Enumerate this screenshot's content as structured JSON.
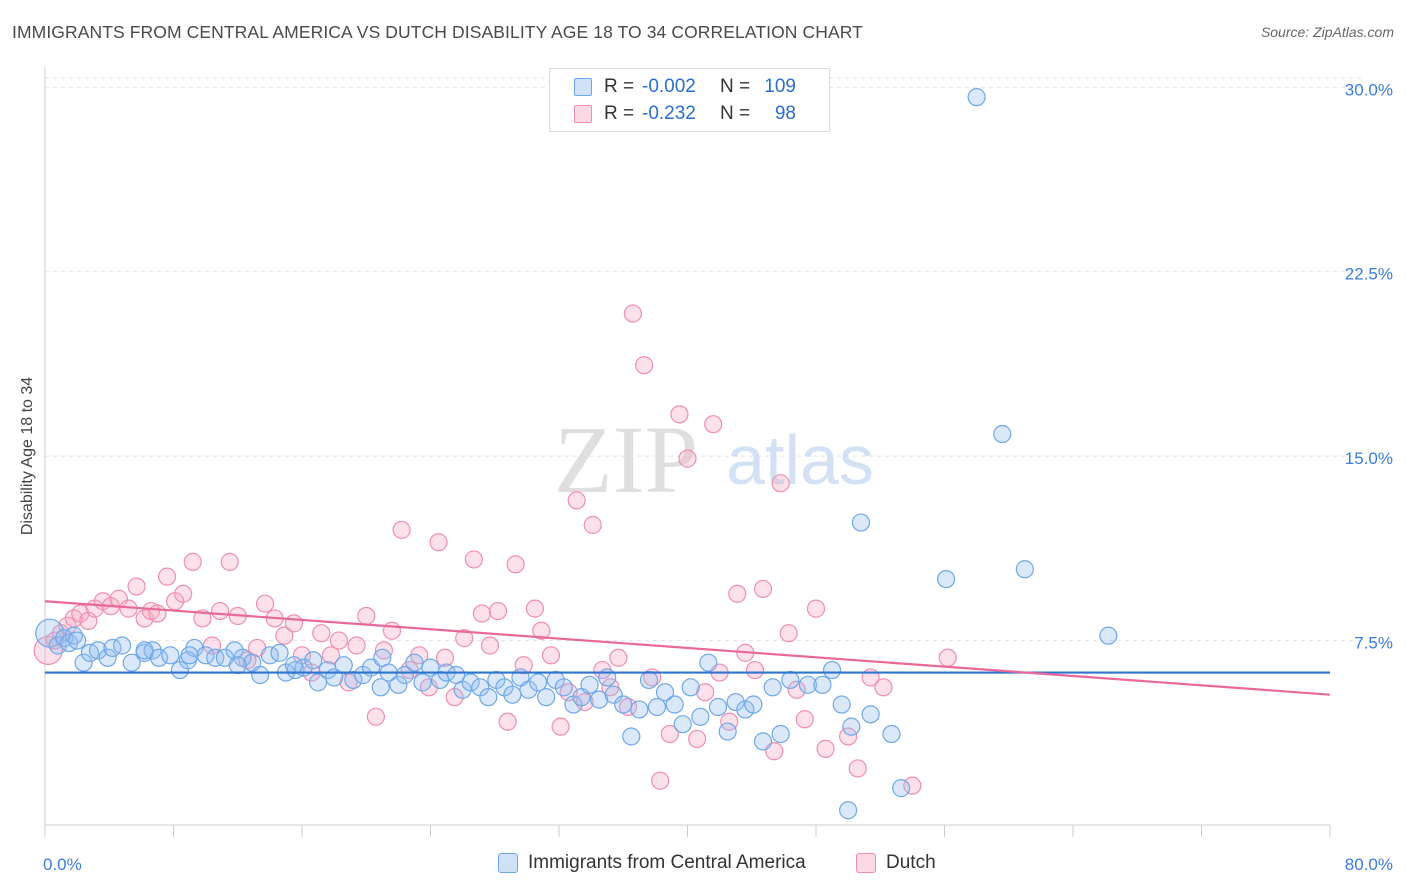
{
  "header": {
    "title": "IMMIGRANTS FROM CENTRAL AMERICA VS DUTCH DISABILITY AGE 18 TO 34 CORRELATION CHART",
    "source": "Source: ZipAtlas.com"
  },
  "watermark": {
    "zip": "ZIP",
    "atlas": "atlas"
  },
  "legend": {
    "r_label": "R =",
    "n_label": "N =",
    "rows": [
      {
        "r": "-0.002",
        "n": "109",
        "color": "#6fa8e8"
      },
      {
        "r": "-0.232",
        "n": "98",
        "color": "#f08aa8"
      }
    ]
  },
  "bottom_legend": {
    "items": [
      {
        "label": "Immigrants from Central America",
        "color": "#6fa8e8"
      },
      {
        "label": "Dutch",
        "color": "#f08aa8"
      }
    ]
  },
  "colors": {
    "blue_fill": "rgba(150,190,240,0.35)",
    "blue_stroke": "#6fa8e8",
    "blue_line": "#2f74cf",
    "pink_fill": "rgba(245,170,195,0.35)",
    "pink_stroke": "#ef8fae",
    "pink_line": "#e8689a",
    "axis_text": "#3b7dd8"
  },
  "chart_data": {
    "type": "scatter",
    "title": "IMMIGRANTS FROM CENTRAL AMERICA VS DUTCH DISABILITY AGE 18 TO 34 CORRELATION CHART",
    "xlabel": "",
    "ylabel": "Disability Age 18 to 34",
    "xlim": [
      0,
      80
    ],
    "ylim": [
      0,
      30.5
    ],
    "x_tick_labels": [
      "0.0%",
      "80.0%"
    ],
    "y_ticks": [
      7.5,
      15.0,
      22.5,
      30.0
    ],
    "y_tick_labels": [
      "7.5%",
      "15.0%",
      "22.5%",
      "30.0%"
    ],
    "grid": "horizontal dashed",
    "legend_position": "top-center",
    "series": [
      {
        "name": "Immigrants from Central America",
        "r": -0.002,
        "n": 109,
        "trend": {
          "x": [
            0,
            80
          ],
          "y": [
            6.2,
            6.2
          ]
        },
        "points": [
          [
            0.3,
            7.8
          ],
          [
            0.8,
            7.3
          ],
          [
            1.2,
            7.6
          ],
          [
            1.5,
            7.4
          ],
          [
            1.8,
            7.7
          ],
          [
            2.0,
            7.5
          ],
          [
            2.4,
            6.6
          ],
          [
            2.8,
            7.0
          ],
          [
            3.3,
            7.1
          ],
          [
            3.9,
            6.8
          ],
          [
            4.2,
            7.2
          ],
          [
            4.8,
            7.3
          ],
          [
            5.4,
            6.6
          ],
          [
            6.2,
            7.0
          ],
          [
            6.7,
            7.1
          ],
          [
            7.1,
            6.8
          ],
          [
            7.8,
            6.9
          ],
          [
            8.4,
            6.3
          ],
          [
            8.9,
            6.7
          ],
          [
            9.3,
            7.2
          ],
          [
            10.0,
            6.9
          ],
          [
            10.6,
            6.8
          ],
          [
            11.2,
            6.8
          ],
          [
            11.8,
            7.1
          ],
          [
            12.3,
            6.8
          ],
          [
            12.9,
            6.6
          ],
          [
            13.4,
            6.1
          ],
          [
            14.0,
            6.9
          ],
          [
            14.6,
            7.0
          ],
          [
            15.0,
            6.2
          ],
          [
            15.6,
            6.3
          ],
          [
            16.1,
            6.4
          ],
          [
            16.7,
            6.7
          ],
          [
            17.0,
            5.8
          ],
          [
            17.6,
            6.3
          ],
          [
            18.0,
            6.0
          ],
          [
            18.6,
            6.5
          ],
          [
            19.2,
            5.9
          ],
          [
            19.8,
            6.1
          ],
          [
            20.3,
            6.4
          ],
          [
            20.9,
            5.6
          ],
          [
            21.4,
            6.2
          ],
          [
            22.0,
            5.7
          ],
          [
            22.4,
            6.1
          ],
          [
            23.0,
            6.6
          ],
          [
            23.5,
            5.8
          ],
          [
            24.0,
            6.4
          ],
          [
            24.6,
            5.9
          ],
          [
            25.0,
            6.2
          ],
          [
            25.6,
            6.1
          ],
          [
            26.0,
            5.5
          ],
          [
            26.5,
            5.8
          ],
          [
            27.1,
            5.6
          ],
          [
            27.6,
            5.2
          ],
          [
            28.1,
            5.9
          ],
          [
            28.6,
            5.6
          ],
          [
            29.1,
            5.3
          ],
          [
            29.6,
            6.0
          ],
          [
            30.1,
            5.5
          ],
          [
            30.7,
            5.8
          ],
          [
            31.2,
            5.2
          ],
          [
            31.8,
            5.9
          ],
          [
            32.3,
            5.6
          ],
          [
            32.9,
            4.9
          ],
          [
            33.4,
            5.2
          ],
          [
            33.9,
            5.7
          ],
          [
            34.5,
            5.1
          ],
          [
            35.0,
            6.0
          ],
          [
            35.4,
            5.3
          ],
          [
            36.0,
            4.9
          ],
          [
            36.5,
            3.6
          ],
          [
            37.0,
            4.7
          ],
          [
            37.6,
            5.9
          ],
          [
            38.1,
            4.8
          ],
          [
            38.6,
            5.4
          ],
          [
            39.2,
            4.9
          ],
          [
            39.7,
            4.1
          ],
          [
            40.2,
            5.6
          ],
          [
            40.8,
            4.4
          ],
          [
            41.3,
            6.6
          ],
          [
            41.9,
            4.8
          ],
          [
            42.5,
            3.8
          ],
          [
            43.0,
            5.0
          ],
          [
            43.6,
            4.7
          ],
          [
            44.1,
            4.9
          ],
          [
            44.7,
            3.4
          ],
          [
            45.3,
            5.6
          ],
          [
            45.8,
            3.7
          ],
          [
            46.4,
            5.9
          ],
          [
            47.5,
            5.7
          ],
          [
            48.4,
            5.7
          ],
          [
            49.0,
            6.3
          ],
          [
            49.6,
            4.9
          ],
          [
            50.2,
            4.0
          ],
          [
            50.8,
            12.3
          ],
          [
            51.4,
            4.5
          ],
          [
            52.7,
            3.7
          ],
          [
            53.3,
            1.5
          ],
          [
            56.1,
            10.0
          ],
          [
            58.0,
            29.6
          ],
          [
            59.6,
            15.9
          ],
          [
            61.0,
            10.4
          ],
          [
            66.2,
            7.7
          ],
          [
            50.0,
            0.6
          ],
          [
            6.2,
            7.1
          ],
          [
            9.0,
            6.9
          ],
          [
            12.0,
            6.5
          ],
          [
            15.5,
            6.5
          ],
          [
            21.0,
            6.8
          ]
        ]
      },
      {
        "name": "Dutch",
        "r": -0.232,
        "n": 98,
        "trend": {
          "x": [
            0,
            80
          ],
          "y": [
            9.1,
            5.3
          ]
        },
        "points": [
          [
            0.2,
            7.1
          ],
          [
            0.6,
            7.5
          ],
          [
            1.0,
            7.8
          ],
          [
            1.4,
            8.1
          ],
          [
            1.8,
            8.4
          ],
          [
            2.2,
            8.6
          ],
          [
            2.7,
            8.3
          ],
          [
            3.1,
            8.8
          ],
          [
            3.6,
            9.1
          ],
          [
            4.1,
            8.9
          ],
          [
            4.6,
            9.2
          ],
          [
            5.2,
            8.8
          ],
          [
            5.7,
            9.7
          ],
          [
            6.2,
            8.4
          ],
          [
            6.6,
            8.7
          ],
          [
            7.0,
            8.6
          ],
          [
            7.6,
            10.1
          ],
          [
            8.1,
            9.1
          ],
          [
            8.6,
            9.4
          ],
          [
            9.2,
            10.7
          ],
          [
            9.8,
            8.4
          ],
          [
            10.4,
            7.3
          ],
          [
            10.9,
            8.7
          ],
          [
            11.5,
            10.7
          ],
          [
            12.0,
            8.5
          ],
          [
            12.6,
            6.7
          ],
          [
            13.2,
            7.2
          ],
          [
            13.7,
            9.0
          ],
          [
            14.3,
            8.4
          ],
          [
            14.9,
            7.7
          ],
          [
            15.5,
            8.2
          ],
          [
            16.0,
            6.9
          ],
          [
            16.6,
            6.2
          ],
          [
            17.2,
            7.8
          ],
          [
            17.8,
            6.9
          ],
          [
            18.3,
            7.5
          ],
          [
            18.9,
            5.8
          ],
          [
            19.4,
            7.3
          ],
          [
            20.0,
            8.5
          ],
          [
            20.6,
            4.4
          ],
          [
            21.1,
            7.1
          ],
          [
            21.6,
            7.9
          ],
          [
            22.2,
            12.0
          ],
          [
            22.7,
            6.3
          ],
          [
            23.3,
            6.9
          ],
          [
            23.9,
            5.6
          ],
          [
            24.5,
            11.5
          ],
          [
            24.9,
            6.8
          ],
          [
            25.5,
            5.2
          ],
          [
            26.1,
            7.6
          ],
          [
            26.7,
            10.8
          ],
          [
            27.2,
            8.6
          ],
          [
            27.7,
            7.3
          ],
          [
            28.2,
            8.7
          ],
          [
            28.8,
            4.2
          ],
          [
            29.3,
            10.6
          ],
          [
            29.8,
            6.5
          ],
          [
            30.5,
            8.8
          ],
          [
            30.9,
            7.9
          ],
          [
            31.5,
            6.9
          ],
          [
            32.1,
            4.0
          ],
          [
            32.6,
            5.4
          ],
          [
            33.1,
            13.2
          ],
          [
            33.6,
            5.0
          ],
          [
            34.1,
            12.2
          ],
          [
            34.7,
            6.3
          ],
          [
            35.2,
            5.6
          ],
          [
            35.7,
            6.8
          ],
          [
            36.3,
            4.8
          ],
          [
            36.6,
            20.8
          ],
          [
            37.3,
            18.7
          ],
          [
            37.8,
            6.0
          ],
          [
            38.3,
            1.8
          ],
          [
            38.9,
            3.7
          ],
          [
            39.5,
            16.7
          ],
          [
            40.0,
            14.9
          ],
          [
            40.6,
            3.5
          ],
          [
            41.1,
            5.4
          ],
          [
            41.6,
            16.3
          ],
          [
            42.0,
            6.2
          ],
          [
            42.6,
            4.2
          ],
          [
            43.1,
            9.4
          ],
          [
            43.6,
            7.0
          ],
          [
            44.2,
            6.3
          ],
          [
            44.7,
            9.6
          ],
          [
            45.4,
            3.0
          ],
          [
            45.8,
            13.9
          ],
          [
            46.3,
            7.8
          ],
          [
            46.8,
            5.5
          ],
          [
            47.3,
            4.3
          ],
          [
            48.0,
            8.8
          ],
          [
            48.6,
            3.1
          ],
          [
            50.0,
            3.6
          ],
          [
            50.6,
            2.3
          ],
          [
            51.4,
            6.0
          ],
          [
            52.2,
            5.6
          ],
          [
            54.0,
            1.6
          ],
          [
            56.2,
            6.8
          ]
        ]
      }
    ]
  }
}
